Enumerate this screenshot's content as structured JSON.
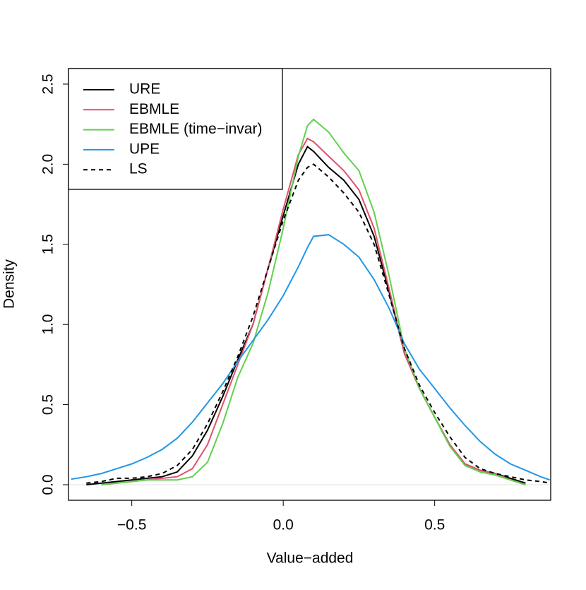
{
  "chart_data": {
    "type": "line",
    "x_label": "Value−added",
    "y_label": "Density",
    "x": [
      -0.7,
      -0.65,
      -0.6,
      -0.55,
      -0.5,
      -0.45,
      -0.4,
      -0.35,
      -0.3,
      -0.25,
      -0.2,
      -0.15,
      -0.1,
      -0.05,
      0,
      0.05,
      0.08,
      0.1,
      0.15,
      0.2,
      0.25,
      0.3,
      0.35,
      0.4,
      0.45,
      0.5,
      0.55,
      0.6,
      0.65,
      0.7,
      0.75,
      0.8,
      0.85,
      0.88
    ],
    "series": [
      {
        "name": "URE",
        "color": "#000000",
        "dash": false,
        "values": [
          null,
          0.0,
          0.01,
          0.02,
          0.03,
          0.04,
          0.05,
          0.08,
          0.18,
          0.34,
          0.55,
          0.78,
          1.0,
          1.35,
          1.68,
          2.0,
          2.11,
          2.08,
          1.98,
          1.9,
          1.78,
          1.55,
          1.2,
          0.82,
          0.6,
          0.42,
          0.25,
          0.13,
          0.09,
          0.07,
          0.04,
          0.01,
          null,
          null
        ]
      },
      {
        "name": "EBMLE",
        "color": "#df536b",
        "dash": false,
        "values": [
          null,
          null,
          0.0,
          0.01,
          0.02,
          0.03,
          0.04,
          0.05,
          0.1,
          0.25,
          0.5,
          0.75,
          1.0,
          1.35,
          1.72,
          2.06,
          2.16,
          2.14,
          2.05,
          1.96,
          1.84,
          1.6,
          1.22,
          0.82,
          0.6,
          0.42,
          0.25,
          0.13,
          0.09,
          0.07,
          0.03,
          0.0,
          null,
          null
        ]
      },
      {
        "name": "EBMLE (time−invar)",
        "color": "#61d04f",
        "dash": false,
        "values": [
          null,
          null,
          0.0,
          0.01,
          0.02,
          0.03,
          0.03,
          0.03,
          0.05,
          0.14,
          0.38,
          0.67,
          0.88,
          1.2,
          1.6,
          2.05,
          2.24,
          2.28,
          2.2,
          2.07,
          1.96,
          1.7,
          1.3,
          0.85,
          0.6,
          0.42,
          0.24,
          0.12,
          0.08,
          0.06,
          0.03,
          0.0,
          null,
          null
        ]
      },
      {
        "name": "UPE",
        "color": "#2297e6",
        "dash": false,
        "values": [
          0.035,
          0.05,
          0.07,
          0.1,
          0.13,
          0.17,
          0.22,
          0.29,
          0.39,
          0.51,
          0.63,
          0.77,
          0.9,
          1.03,
          1.18,
          1.36,
          1.48,
          1.55,
          1.56,
          1.5,
          1.42,
          1.28,
          1.1,
          0.88,
          0.72,
          0.6,
          0.48,
          0.37,
          0.27,
          0.19,
          0.13,
          0.09,
          0.05,
          0.03
        ]
      },
      {
        "name": "LS",
        "color": "#000000",
        "dash": true,
        "values": [
          null,
          0.01,
          0.02,
          0.04,
          0.04,
          0.05,
          0.07,
          0.12,
          0.22,
          0.38,
          0.58,
          0.8,
          1.05,
          1.35,
          1.65,
          1.9,
          1.98,
          2.0,
          1.92,
          1.82,
          1.7,
          1.5,
          1.18,
          0.85,
          0.62,
          0.45,
          0.3,
          0.17,
          0.1,
          0.07,
          0.05,
          0.03,
          0.02,
          0.01
        ]
      }
    ],
    "xlim": [
      -0.709,
      0.883
    ],
    "ylim": [
      -0.097,
      2.597
    ],
    "xticks": [
      {
        "value": -0.5,
        "label": "−0.5"
      },
      {
        "value": 0,
        "label": "0.0"
      },
      0.5
    ],
    "yticks": [
      {
        "value": 0,
        "label": "0.0"
      },
      0.5,
      {
        "value": 1,
        "label": "1.0"
      },
      1.5,
      {
        "value": 2,
        "label": "2.0"
      },
      2.5
    ],
    "legend": "top-left"
  }
}
